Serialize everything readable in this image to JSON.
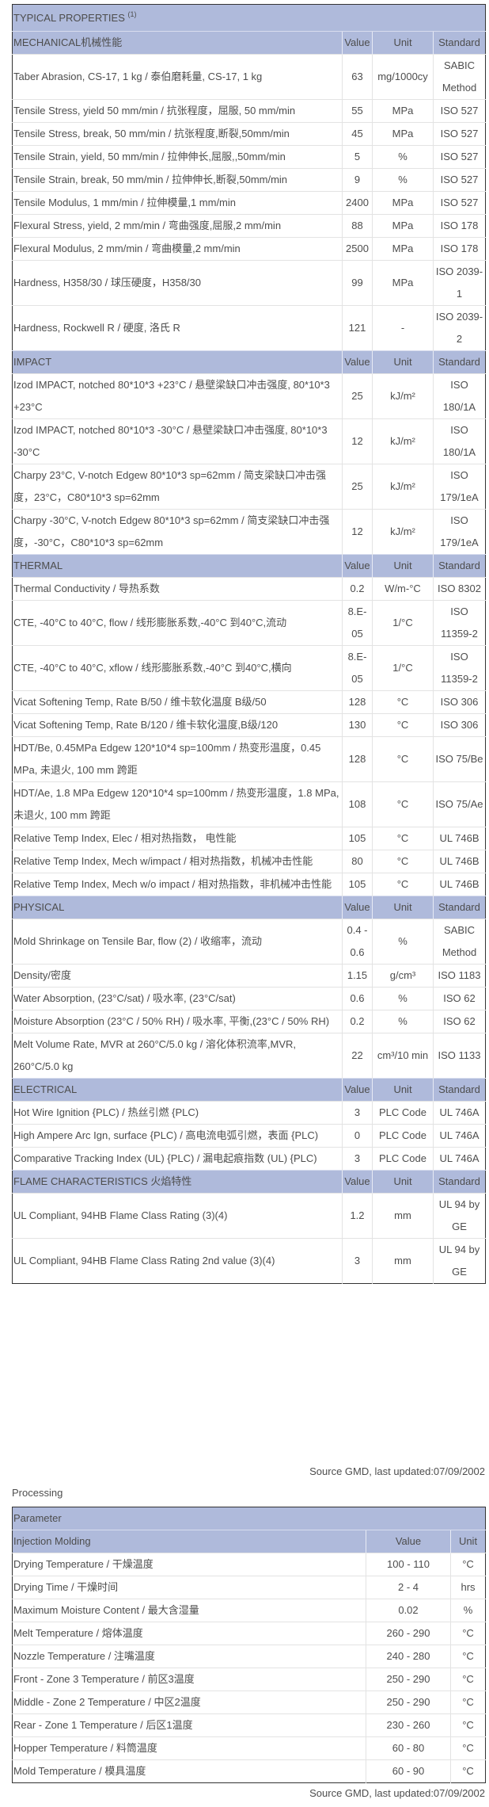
{
  "properties": {
    "title": "TYPICAL PROPERTIES",
    "title_note": "(1)",
    "sections": [
      {
        "title": "MECHANICAL机械性能",
        "value_h": "Value",
        "unit_h": "Unit",
        "std_h": "Standard",
        "rows": [
          [
            "Taber Abrasion, CS-17, 1 kg / 泰伯磨耗量, CS-17, 1 kg",
            "63",
            "mg/1000cy",
            "SABIC Method"
          ],
          [
            "Tensile Stress, yield 50 mm/min / 抗张程度，屈服, 50 mm/min",
            "55",
            "MPa",
            "ISO 527"
          ],
          [
            "Tensile Stress, break, 50 mm/min / 抗张程度,断裂,50mm/min",
            "45",
            "MPa",
            "ISO 527"
          ],
          [
            "Tensile Strain, yield, 50 mm/min / 拉伸伸长,屈服,,50mm/min",
            "5",
            "%",
            "ISO 527"
          ],
          [
            "Tensile Strain, break, 50 mm/min / 拉伸伸长,断裂,50mm/min",
            "9",
            "%",
            "ISO 527"
          ],
          [
            "Tensile Modulus, 1 mm/min / 拉伸模量,1 mm/min",
            "2400",
            "MPa",
            "ISO 527"
          ],
          [
            "Flexural Stress, yield, 2 mm/min / 弯曲强度,屈服,2 mm/min",
            "88",
            "MPa",
            "ISO 178"
          ],
          [
            "Flexural Modulus, 2 mm/min / 弯曲模量,2 mm/min",
            "2500",
            "MPa",
            "ISO 178"
          ],
          [
            "Hardness, H358/30 / 球压硬度，H358/30",
            "99",
            "MPa",
            "ISO 2039-1"
          ],
          [
            "Hardness, Rockwell R / 硬度, 洛氏 R",
            "121",
            "-",
            "ISO 2039-2"
          ]
        ]
      },
      {
        "title": "IMPACT",
        "value_h": "Value",
        "unit_h": "Unit",
        "std_h": "Standard",
        "rows": [
          [
            "Izod IMPACT, notched 80*10*3 +23°C / 悬壁梁缺口冲击强度, 80*10*3 +23°C",
            "25",
            "kJ/m²",
            "ISO 180/1A"
          ],
          [
            "Izod IMPACT, notched 80*10*3 -30°C / 悬壁梁缺口冲击强度, 80*10*3 -30°C",
            "12",
            "kJ/m²",
            "ISO 180/1A"
          ],
          [
            "Charpy 23°C, V-notch Edgew 80*10*3 sp=62mm / 简支梁缺口冲击强度，23°C，C80*10*3 sp=62mm",
            "25",
            "kJ/m²",
            "ISO 179/1eA"
          ],
          [
            "Charpy -30°C, V-notch Edgew 80*10*3 sp=62mm / 简支梁缺口冲击强度，-30°C，C80*10*3 sp=62mm",
            "12",
            "kJ/m²",
            "ISO 179/1eA"
          ]
        ]
      },
      {
        "title": "THERMAL",
        "value_h": "Value",
        "unit_h": "Unit",
        "std_h": "Standard",
        "rows": [
          [
            "Thermal Conductivity / 导热系数",
            "0.2",
            "W/m-°C",
            "ISO 8302"
          ],
          [
            "CTE, -40°C to 40°C, flow / 线形膨胀系数,-40°C 到40°C,流动",
            "8.E-05",
            "1/°C",
            "ISO 11359-2"
          ],
          [
            "CTE, -40°C to 40°C, xflow / 线形膨胀系数,-40°C 到40°C,横向",
            "8.E-05",
            "1/°C",
            "ISO 11359-2"
          ],
          [
            "Vicat Softening Temp, Rate B/50 / 维卡软化温度 B级/50",
            "128",
            "°C",
            "ISO 306"
          ],
          [
            "Vicat Softening Temp, Rate B/120 / 维卡软化温度,B级/120",
            "130",
            "°C",
            "ISO 306"
          ],
          [
            "HDT/Be, 0.45MPa Edgew 120*10*4 sp=100mm / 热变形温度，0.45 MPa, 未退火, 100 mm 跨距",
            "128",
            "°C",
            "ISO 75/Be"
          ],
          [
            "HDT/Ae, 1.8 MPa Edgew 120*10*4 sp=100mm / 热变形温度，1.8 MPa, 未退火, 100 mm 跨距",
            "108",
            "°C",
            "ISO 75/Ae"
          ],
          [
            "Relative Temp Index, Elec / 相对热指数， 电性能",
            "105",
            "°C",
            "UL 746B"
          ],
          [
            "Relative Temp Index, Mech w/impact / 相对热指数，机械冲击性能",
            "80",
            "°C",
            "UL 746B"
          ],
          [
            "Relative Temp Index, Mech w/o impact / 相对热指数，非机械冲击性能",
            "105",
            "°C",
            "UL 746B"
          ]
        ]
      },
      {
        "title": "PHYSICAL",
        "value_h": "Value",
        "unit_h": "Unit",
        "std_h": "Standard",
        "rows": [
          [
            "Mold Shrinkage on Tensile Bar, flow (2) / 收缩率，流动",
            "0.4 - 0.6",
            "%",
            "SABIC Method"
          ],
          [
            "Density/密度",
            "1.15",
            "g/cm³",
            "ISO 1183"
          ],
          [
            "Water Absorption, (23°C/sat) / 吸水率, (23°C/sat)",
            "0.6",
            "%",
            "ISO 62"
          ],
          [
            "Moisture Absorption (23°C / 50% RH) / 吸水率, 平衡,(23°C / 50% RH)",
            "0.2",
            "%",
            "ISO 62"
          ],
          [
            "Melt Volume Rate, MVR at 260°C/5.0 kg / 溶化体积流率,MVR, 260°C/5.0 kg",
            "22",
            "cm³/10 min",
            "ISO 1133"
          ]
        ]
      },
      {
        "title": "ELECTRICAL",
        "value_h": "Value",
        "unit_h": "Unit",
        "std_h": "Standard",
        "rows": [
          [
            "Hot Wire Ignition {PLC) / 热丝引燃 {PLC)",
            "3",
            "PLC Code",
            "UL 746A"
          ],
          [
            "High Ampere Arc Ign, surface {PLC) / 高电流电弧引燃，表面 {PLC)",
            "0",
            "PLC Code",
            "UL 746A"
          ],
          [
            "Comparative Tracking Index (UL) {PLC) / 漏电起痕指数 (UL) {PLC)",
            "3",
            "PLC Code",
            "UL 746A"
          ]
        ]
      },
      {
        "title": "FLAME CHARACTERISTICS 火焰特性",
        "value_h": "Value",
        "unit_h": "Unit",
        "std_h": "Standard",
        "rows": [
          [
            "UL Compliant, 94HB Flame Class Rating (3)(4)",
            "1.2",
            "mm",
            "UL 94 by GE"
          ],
          [
            "UL Compliant, 94HB Flame Class Rating 2nd value (3)(4)",
            "3",
            "mm",
            "UL 94 by GE"
          ]
        ]
      }
    ],
    "source": "Source GMD, last updated:07/09/2002"
  },
  "processing": {
    "label": "Processing",
    "param_header": "Parameter",
    "section": "Injection Molding",
    "value_h": "Value",
    "unit_h": "Unit",
    "rows": [
      [
        "Drying Temperature / 干燥温度",
        "100 - 110",
        "°C"
      ],
      [
        "Drying Time / 干燥时间",
        "2 - 4",
        "hrs"
      ],
      [
        "Maximum Moisture Content / 最大含湿量",
        "0.02",
        "%"
      ],
      [
        "Melt Temperature / 熔体温度",
        "260 - 290",
        "°C"
      ],
      [
        "Nozzle Temperature / 注嘴温度",
        "240 - 280",
        "°C"
      ],
      [
        "Front - Zone 3 Temperature / 前区3温度",
        "250 - 290",
        "°C"
      ],
      [
        "Middle - Zone 2 Temperature / 中区2温度",
        "250 - 290",
        "°C"
      ],
      [
        "Rear - Zone 1 Temperature / 后区1温度",
        "230 - 260",
        "°C"
      ],
      [
        "Hopper Temperature / 料筒温度",
        "60 - 80",
        "°C"
      ],
      [
        "Mold Temperature / 模具温度",
        "60 - 90",
        "°C"
      ]
    ],
    "source": "Source GMD, last updated:07/09/2002"
  },
  "colors": {
    "header_bg": "#afbadb",
    "border": "#333333"
  }
}
